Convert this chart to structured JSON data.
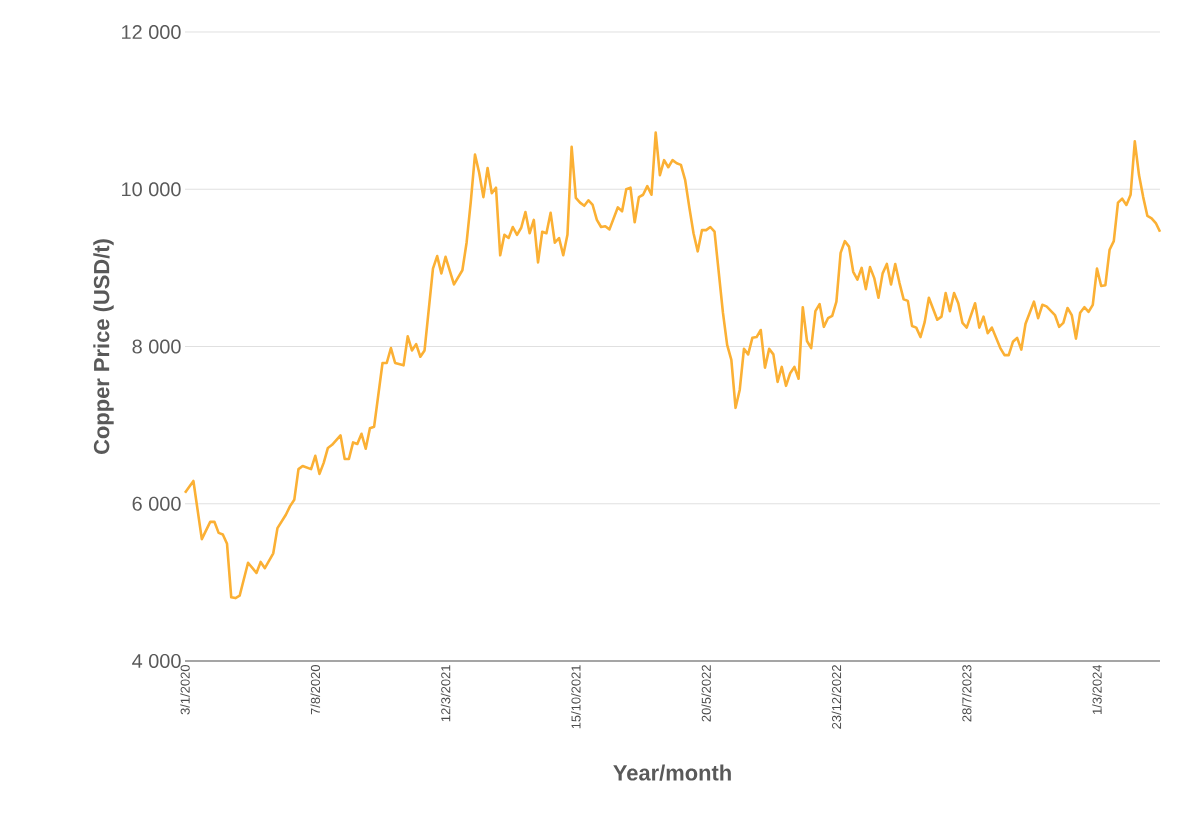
{
  "chart_data": {
    "type": "line",
    "xlabel": "Year/month",
    "ylabel": "Copper Price (USD/t)",
    "x": [
      "2020-01-03",
      "2020-01-17",
      "2020-01-31",
      "2020-02-14",
      "2020-02-21",
      "2020-02-28",
      "2020-03-06",
      "2020-03-13",
      "2020-03-20",
      "2020-03-27",
      "2020-04-03",
      "2020-04-17",
      "2020-05-01",
      "2020-05-08",
      "2020-05-15",
      "2020-05-29",
      "2020-06-05",
      "2020-06-19",
      "2020-06-26",
      "2020-07-03",
      "2020-07-10",
      "2020-07-17",
      "2020-07-31",
      "2020-08-07",
      "2020-08-14",
      "2020-08-21",
      "2020-08-28",
      "2020-09-04",
      "2020-09-18",
      "2020-09-25",
      "2020-10-02",
      "2020-10-09",
      "2020-10-16",
      "2020-10-23",
      "2020-10-30",
      "2020-11-06",
      "2020-11-13",
      "2020-11-27",
      "2020-12-04",
      "2020-12-11",
      "2020-12-18",
      "2021-01-01",
      "2021-01-08",
      "2021-01-15",
      "2021-01-22",
      "2021-01-29",
      "2021-02-05",
      "2021-02-19",
      "2021-02-26",
      "2021-03-05",
      "2021-03-12",
      "2021-03-26",
      "2021-04-09",
      "2021-04-16",
      "2021-04-23",
      "2021-04-30",
      "2021-05-07",
      "2021-05-14",
      "2021-05-21",
      "2021-05-28",
      "2021-06-04",
      "2021-06-11",
      "2021-06-18",
      "2021-06-25",
      "2021-07-02",
      "2021-07-09",
      "2021-07-16",
      "2021-07-23",
      "2021-07-30",
      "2021-08-06",
      "2021-08-13",
      "2021-08-20",
      "2021-08-27",
      "2021-09-03",
      "2021-09-10",
      "2021-09-17",
      "2021-09-24",
      "2021-10-01",
      "2021-10-08",
      "2021-10-15",
      "2021-10-22",
      "2021-10-29",
      "2021-11-05",
      "2021-11-12",
      "2021-11-19",
      "2021-11-26",
      "2021-12-03",
      "2021-12-10",
      "2021-12-24",
      "2021-12-31",
      "2022-01-07",
      "2022-01-14",
      "2022-01-21",
      "2022-01-28",
      "2022-02-04",
      "2022-02-11",
      "2022-02-18",
      "2022-02-25",
      "2022-03-04",
      "2022-03-11",
      "2022-03-18",
      "2022-03-25",
      "2022-04-01",
      "2022-04-08",
      "2022-04-15",
      "2022-04-22",
      "2022-04-29",
      "2022-05-06",
      "2022-05-13",
      "2022-05-20",
      "2022-05-27",
      "2022-06-03",
      "2022-06-17",
      "2022-06-24",
      "2022-07-01",
      "2022-07-08",
      "2022-07-15",
      "2022-07-22",
      "2022-07-29",
      "2022-08-05",
      "2022-08-12",
      "2022-08-19",
      "2022-08-26",
      "2022-09-02",
      "2022-09-09",
      "2022-09-16",
      "2022-09-23",
      "2022-09-30",
      "2022-10-07",
      "2022-10-14",
      "2022-10-21",
      "2022-10-28",
      "2022-11-04",
      "2022-11-11",
      "2022-11-18",
      "2022-11-25",
      "2022-12-02",
      "2022-12-09",
      "2022-12-16",
      "2022-12-23",
      "2022-12-30",
      "2023-01-06",
      "2023-01-13",
      "2023-01-20",
      "2023-01-27",
      "2023-02-03",
      "2023-02-10",
      "2023-02-17",
      "2023-02-24",
      "2023-03-03",
      "2023-03-10",
      "2023-03-17",
      "2023-03-24",
      "2023-03-31",
      "2023-04-07",
      "2023-04-14",
      "2023-04-21",
      "2023-04-28",
      "2023-05-05",
      "2023-05-12",
      "2023-05-19",
      "2023-05-26",
      "2023-06-09",
      "2023-06-16",
      "2023-06-23",
      "2023-06-30",
      "2023-07-07",
      "2023-07-14",
      "2023-07-21",
      "2023-07-28",
      "2023-08-11",
      "2023-08-18",
      "2023-08-25",
      "2023-09-01",
      "2023-09-08",
      "2023-09-22",
      "2023-09-29",
      "2023-10-06",
      "2023-10-13",
      "2023-10-20",
      "2023-10-27",
      "2023-11-03",
      "2023-11-17",
      "2023-11-24",
      "2023-12-01",
      "2023-12-08",
      "2023-12-22",
      "2023-12-29",
      "2024-01-05",
      "2024-01-12",
      "2024-01-19",
      "2024-01-26",
      "2024-02-02",
      "2024-02-09",
      "2024-02-16",
      "2024-02-23",
      "2024-03-01",
      "2024-03-08",
      "2024-03-15",
      "2024-03-22",
      "2024-03-29",
      "2024-04-05",
      "2024-04-12",
      "2024-04-19",
      "2024-04-26",
      "2024-05-03",
      "2024-05-10",
      "2024-05-17",
      "2024-05-24",
      "2024-05-31",
      "2024-06-07",
      "2024-06-14"
    ],
    "series": [
      {
        "color": "#fbb034",
        "values": [
          6140,
          6290,
          5550,
          5770,
          5770,
          5630,
          5610,
          5490,
          4810,
          4800,
          4830,
          5250,
          5120,
          5260,
          5180,
          5370,
          5690,
          5860,
          5970,
          6050,
          6440,
          6480,
          6440,
          6610,
          6380,
          6520,
          6710,
          6750,
          6870,
          6570,
          6570,
          6780,
          6760,
          6890,
          6700,
          6960,
          6980,
          7790,
          7790,
          7980,
          7790,
          7760,
          8130,
          7950,
          8030,
          7870,
          7950,
          8990,
          9150,
          8930,
          9140,
          8790,
          8970,
          9320,
          9840,
          10440,
          10210,
          9900,
          10270,
          9950,
          10020,
          9160,
          9420,
          9380,
          9520,
          9420,
          9510,
          9710,
          9440,
          9610,
          9070,
          9460,
          9440,
          9700,
          9320,
          9380,
          9160,
          9420,
          10540,
          9890,
          9830,
          9790,
          9860,
          9800,
          9610,
          9520,
          9530,
          9490,
          9770,
          9720,
          10000,
          10020,
          9580,
          9900,
          9930,
          10040,
          9930,
          10720,
          10180,
          10370,
          10280,
          10370,
          10330,
          10310,
          10120,
          9770,
          9440,
          9210,
          9480,
          9480,
          9520,
          9460,
          8430,
          8020,
          7830,
          7220,
          7450,
          7970,
          7900,
          8110,
          8120,
          8210,
          7730,
          7970,
          7900,
          7550,
          7740,
          7500,
          7660,
          7740,
          7590,
          8500,
          8070,
          7980,
          8450,
          8540,
          8250,
          8360,
          8390,
          8570,
          9190,
          9340,
          9270,
          8950,
          8850,
          9000,
          8730,
          9010,
          8870,
          8620,
          8930,
          9050,
          8790,
          9050,
          8810,
          8600,
          8580,
          8260,
          8240,
          8120,
          8310,
          8620,
          8340,
          8380,
          8680,
          8450,
          8680,
          8550,
          8300,
          8240,
          8550,
          8240,
          8380,
          8170,
          8240,
          7980,
          7890,
          7890,
          8060,
          8110,
          7960,
          8290,
          8570,
          8360,
          8530,
          8510,
          8400,
          8250,
          8300,
          8490,
          8400,
          8100,
          8430,
          8500,
          8440,
          8530,
          8990,
          8770,
          8780,
          9230,
          9340,
          9830,
          9880,
          9800,
          9930,
          10610,
          10180,
          9900,
          9660,
          9630,
          9570,
          9460
        ]
      }
    ],
    "xlim": [
      "2020-01-03",
      "2024-06-14"
    ],
    "xticks": [
      {
        "value": "2020-01-03",
        "label": "3/1/2020"
      },
      {
        "value": "2020-08-07",
        "label": "7/8/2020"
      },
      {
        "value": "2021-03-12",
        "label": "12/3/2021"
      },
      {
        "value": "2021-10-15",
        "label": "15/10/2021"
      },
      {
        "value": "2022-05-20",
        "label": "20/5/2022"
      },
      {
        "value": "2022-12-23",
        "label": "23/12/2022"
      },
      {
        "value": "2023-07-28",
        "label": "28/7/2023"
      },
      {
        "value": "2024-03-01",
        "label": "1/3/2024"
      }
    ],
    "ylim": [
      4000,
      12000
    ],
    "yticks": [
      {
        "value": 4000,
        "label": "4 000"
      },
      {
        "value": 6000,
        "label": "6 000"
      },
      {
        "value": 8000,
        "label": "8 000"
      },
      {
        "value": 10000,
        "label": "10 000"
      },
      {
        "value": 12000,
        "label": "12 000"
      }
    ],
    "grid": "y"
  }
}
